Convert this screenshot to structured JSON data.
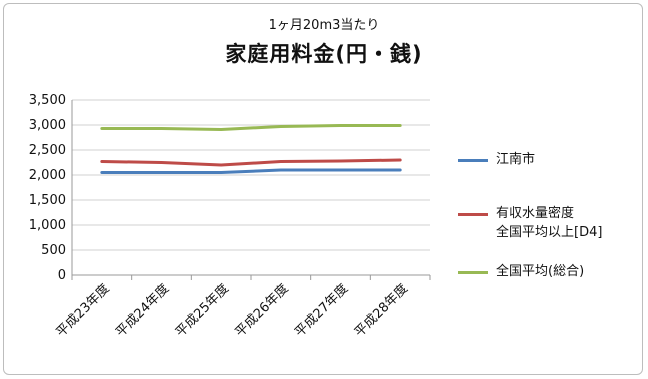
{
  "chart_data": {
    "type": "line",
    "subtitle": "1ヶ月20m3当たり",
    "title": "家庭用料金(円・銭)",
    "xlabel": "",
    "ylabel": "",
    "categories": [
      "平成23年度",
      "平成24年度",
      "平成25年度",
      "平成26年度",
      "平成27年度",
      "平成28年度"
    ],
    "ylim": [
      0,
      3500
    ],
    "yticks": [
      "0",
      "500",
      "1,000",
      "1,500",
      "2,000",
      "2,500",
      "3,000",
      "3,500"
    ],
    "grid": true,
    "legend_position": "right",
    "series": [
      {
        "name": "江南市",
        "color": "#4a7ebb",
        "values": [
          2050,
          2050,
          2050,
          2100,
          2100,
          2100
        ]
      },
      {
        "name": "有収水量密度\n全国平均以上[D4]",
        "color": "#be4b48",
        "values": [
          2270,
          2250,
          2200,
          2270,
          2280,
          2300
        ]
      },
      {
        "name": "全国平均(総合)",
        "color": "#98b954",
        "values": [
          2930,
          2930,
          2910,
          2970,
          2990,
          2990
        ]
      }
    ]
  }
}
